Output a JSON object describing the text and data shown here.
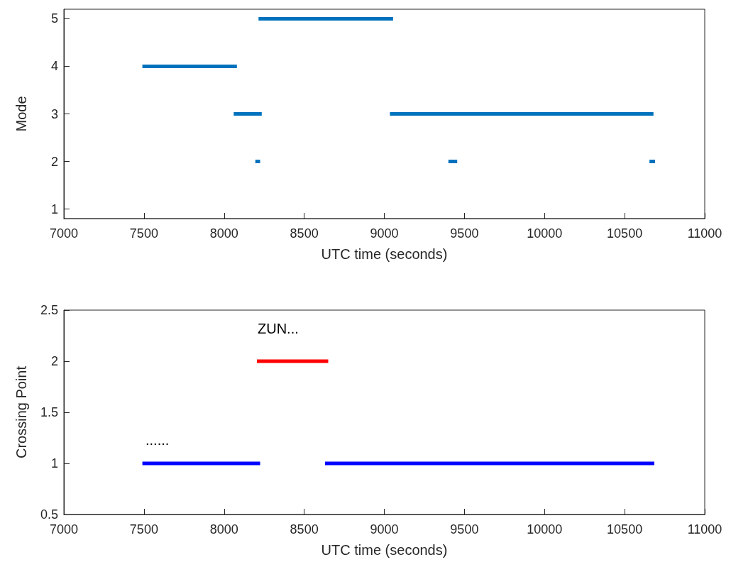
{
  "chart_data": [
    {
      "type": "line",
      "xlabel": "UTC time (seconds)",
      "ylabel": "Mode",
      "xlim": [
        7000,
        11000
      ],
      "xticks": [
        7000,
        7500,
        8000,
        8500,
        9000,
        9500,
        10000,
        10500,
        11000
      ],
      "ylim": [
        0.8,
        5.2
      ],
      "yticks": [
        1,
        2,
        3,
        4,
        5
      ],
      "grid": false,
      "series": [
        {
          "color": "#0072bd",
          "x": [
            7490,
            8080
          ],
          "values": [
            4,
            4
          ]
        },
        {
          "color": "#0072bd",
          "x": [
            8060,
            8235
          ],
          "values": [
            3,
            3
          ]
        },
        {
          "color": "#0072bd",
          "x": [
            8195,
            8225
          ],
          "values": [
            2,
            2
          ]
        },
        {
          "color": "#0072bd",
          "x": [
            8215,
            9055
          ],
          "values": [
            5,
            5
          ]
        },
        {
          "color": "#0072bd",
          "x": [
            9035,
            10680
          ],
          "values": [
            3,
            3
          ]
        },
        {
          "color": "#0072bd",
          "x": [
            9400,
            9455
          ],
          "values": [
            2,
            2
          ]
        },
        {
          "color": "#0072bd",
          "x": [
            10655,
            10690
          ],
          "values": [
            2,
            2
          ]
        }
      ]
    },
    {
      "type": "line",
      "xlabel": "UTC time (seconds)",
      "ylabel": "Crossing Point",
      "xlim": [
        7000,
        11000
      ],
      "xticks": [
        7000,
        7500,
        8000,
        8500,
        9000,
        9500,
        10000,
        10500,
        11000
      ],
      "ylim": [
        0.5,
        2.5
      ],
      "yticks": [
        0.5,
        1,
        1.5,
        2,
        2.5
      ],
      "grid": false,
      "annotations": [
        "ZUN...",
        "......"
      ],
      "series": [
        {
          "color": "#0000ff",
          "x": [
            7490,
            8225
          ],
          "values": [
            1,
            1
          ]
        },
        {
          "color": "#ff0000",
          "x": [
            8205,
            8650
          ],
          "values": [
            2,
            2
          ]
        },
        {
          "color": "#0000ff",
          "x": [
            8630,
            10685
          ],
          "values": [
            1,
            1
          ]
        }
      ]
    }
  ]
}
